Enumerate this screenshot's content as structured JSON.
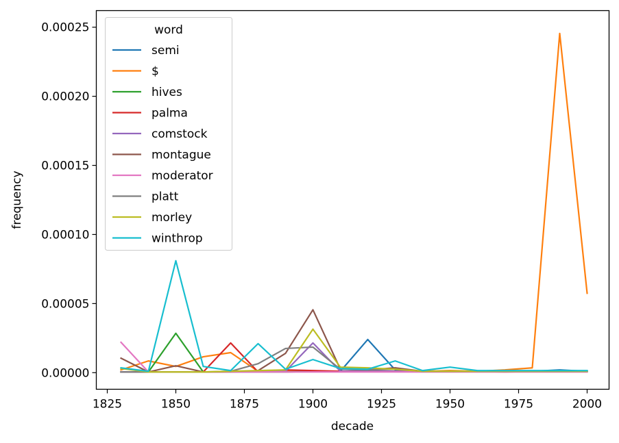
{
  "chart_data": {
    "type": "line",
    "xlabel": "decade",
    "ylabel": "frequency",
    "xlim": [
      1821,
      2008
    ],
    "ylim": [
      -1.2e-05,
      0.000262
    ],
    "x_ticks": [
      1825,
      1850,
      1875,
      1900,
      1925,
      1950,
      1975,
      2000
    ],
    "x_tick_labels": [
      "1825",
      "1850",
      "1875",
      "1900",
      "1925",
      "1950",
      "1975",
      "2000"
    ],
    "y_ticks": [
      0,
      5e-05,
      0.0001,
      0.00015,
      0.0002,
      0.00025
    ],
    "y_tick_labels": [
      "0.00000",
      "0.00005",
      "0.00010",
      "0.00015",
      "0.00020",
      "0.00025"
    ],
    "legend": {
      "title": "word",
      "position": "top-left"
    },
    "x": [
      1830,
      1840,
      1850,
      1860,
      1870,
      1880,
      1890,
      1900,
      1910,
      1920,
      1930,
      1940,
      1950,
      1960,
      1970,
      1980,
      1990,
      2000
    ],
    "series": [
      {
        "name": "semi",
        "color": "#1f77b4",
        "values": [
          5e-07,
          5e-07,
          5e-07,
          5e-07,
          5e-07,
          5e-07,
          5e-07,
          1e-06,
          1e-06,
          2.4e-05,
          2e-06,
          1e-06,
          1e-06,
          1e-06,
          1e-06,
          1e-06,
          2e-06,
          1e-06
        ]
      },
      {
        "name": "$",
        "color": "#ff7f0e",
        "values": [
          2e-06,
          8.5e-06,
          4.5e-06,
          1.15e-05,
          1.45e-05,
          1e-06,
          1.5e-06,
          1e-06,
          1e-06,
          1e-06,
          1e-06,
          1e-06,
          1.5e-06,
          1e-06,
          2e-06,
          3.5e-06,
          0.0002455,
          5.75e-05
        ]
      },
      {
        "name": "hives",
        "color": "#2ca02c",
        "values": [
          5e-07,
          5e-07,
          2.85e-05,
          5e-07,
          5e-07,
          5e-07,
          5e-07,
          1e-06,
          1e-06,
          1e-06,
          1e-06,
          1e-06,
          1e-06,
          1e-06,
          1e-06,
          1e-06,
          1e-06,
          1e-06
        ]
      },
      {
        "name": "palma",
        "color": "#d62728",
        "values": [
          5e-07,
          5e-07,
          5e-07,
          5e-07,
          2.15e-05,
          5e-07,
          2e-06,
          1.5e-06,
          1e-06,
          1e-06,
          1e-06,
          1e-06,
          1e-06,
          1e-06,
          1e-06,
          1e-06,
          1e-06,
          1e-06
        ]
      },
      {
        "name": "comstock",
        "color": "#9467bd",
        "values": [
          5e-07,
          5e-07,
          5e-07,
          5e-07,
          5e-07,
          5e-07,
          1e-06,
          2.15e-05,
          1e-06,
          1e-06,
          1e-06,
          1e-06,
          1e-06,
          1e-06,
          1e-06,
          1e-06,
          1e-06,
          1e-06
        ]
      },
      {
        "name": "montague",
        "color": "#8c564b",
        "values": [
          1.05e-05,
          5e-07,
          5e-06,
          5e-07,
          5e-07,
          1.5e-06,
          1.4e-05,
          4.55e-05,
          2.5e-06,
          2e-06,
          3.5e-06,
          1e-06,
          1e-06,
          1e-06,
          5e-07,
          1e-06,
          1e-06,
          1e-06
        ]
      },
      {
        "name": "moderator",
        "color": "#e377c2",
        "values": [
          2.2e-05,
          5e-07,
          5e-07,
          5e-07,
          5e-07,
          5e-07,
          5e-07,
          5e-07,
          5e-07,
          5e-07,
          5e-07,
          5e-07,
          5e-07,
          5e-07,
          5e-07,
          5e-07,
          5e-07,
          5e-07
        ]
      },
      {
        "name": "platt",
        "color": "#7f7f7f",
        "values": [
          5e-07,
          5e-07,
          5e-07,
          5e-07,
          1e-06,
          6.5e-06,
          1.75e-05,
          1.85e-05,
          2.5e-06,
          2e-06,
          2.5e-06,
          1e-06,
          1e-06,
          1e-06,
          1e-06,
          1e-06,
          1e-06,
          1e-06
        ]
      },
      {
        "name": "morley",
        "color": "#bcbd22",
        "values": [
          3e-06,
          5e-07,
          5e-07,
          5e-07,
          1e-06,
          1.5e-06,
          2e-06,
          3.15e-05,
          4e-06,
          3.5e-06,
          2.5e-06,
          1e-06,
          1e-06,
          1e-06,
          1e-06,
          1e-06,
          1e-06,
          1e-06
        ]
      },
      {
        "name": "winthrop",
        "color": "#17becf",
        "values": [
          3.5e-06,
          1e-06,
          8.1e-05,
          4.5e-06,
          1.5e-06,
          2.1e-05,
          2.5e-06,
          9.5e-06,
          3e-06,
          2.5e-06,
          8.5e-06,
          1.5e-06,
          4e-06,
          1.5e-06,
          1.5e-06,
          1.5e-06,
          1.5e-06,
          1.5e-06
        ]
      }
    ]
  }
}
